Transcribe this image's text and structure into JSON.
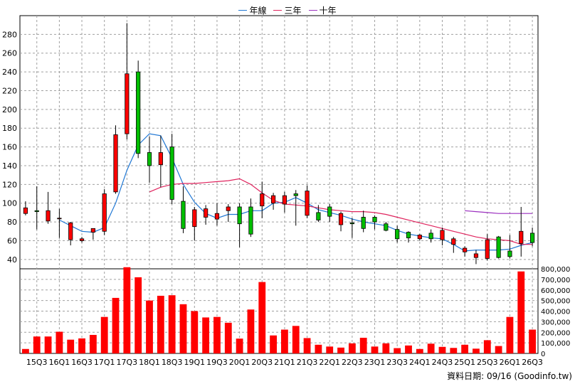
{
  "chart_data": {
    "type": "candlestick-with-volume",
    "legend": [
      {
        "label": "年線",
        "color": "#1f77d4"
      },
      {
        "label": "三年",
        "color": "#e0245e"
      },
      {
        "label": "十年",
        "color": "#9b2fbf"
      }
    ],
    "quarters": [
      "15Q2",
      "15Q3",
      "15Q4",
      "16Q1",
      "16Q2",
      "16Q3",
      "16Q4",
      "17Q1",
      "17Q2",
      "17Q3",
      "17Q4",
      "18Q1",
      "18Q2",
      "18Q3",
      "18Q4",
      "19Q1",
      "19Q2",
      "19Q3",
      "19Q4",
      "20Q1",
      "20Q2",
      "20Q3",
      "20Q4",
      "21Q1",
      "21Q2",
      "21Q3",
      "21Q4",
      "22Q1",
      "22Q2",
      "22Q3",
      "22Q4",
      "23Q1",
      "23Q2",
      "23Q3",
      "23Q4",
      "24Q1",
      "24Q2",
      "24Q3",
      "24Q4",
      "25Q1",
      "25Q2",
      "25Q3",
      "25Q4",
      "26Q1",
      "26Q2",
      "26Q3"
    ],
    "x_tick_labels": [
      "15Q3",
      "16Q1",
      "16Q3",
      "17Q1",
      "17Q3",
      "18Q1",
      "18Q3",
      "19Q1",
      "19Q3",
      "20Q1",
      "20Q3",
      "21Q1",
      "21Q3",
      "22Q1",
      "22Q3",
      "23Q1",
      "23Q3",
      "24Q1",
      "24Q3",
      "25Q1",
      "25Q3",
      "26Q1",
      "26Q3"
    ],
    "ohlc": [
      [
        89,
        102,
        87,
        95
      ],
      [
        92,
        118,
        72,
        91
      ],
      [
        81,
        112,
        78,
        92
      ],
      [
        84,
        94,
        63,
        84
      ],
      [
        61,
        80,
        55,
        79
      ],
      [
        60,
        64,
        58,
        62
      ],
      [
        69,
        73,
        61,
        73
      ],
      [
        70,
        115,
        66,
        110
      ],
      [
        112,
        183,
        110,
        173
      ],
      [
        174,
        292,
        168,
        238
      ],
      [
        240,
        252,
        148,
        153
      ],
      [
        154,
        171,
        122,
        140
      ],
      [
        141,
        172,
        117,
        154
      ],
      [
        160,
        174,
        99,
        104
      ],
      [
        102,
        118,
        68,
        73
      ],
      [
        75,
        96,
        60,
        93
      ],
      [
        85,
        98,
        77,
        94
      ],
      [
        83,
        100,
        76,
        89
      ],
      [
        92,
        99,
        80,
        96
      ],
      [
        96,
        100,
        53,
        78
      ],
      [
        96,
        105,
        64,
        67
      ],
      [
        97,
        123,
        84,
        110
      ],
      [
        100,
        111,
        93,
        108
      ],
      [
        99,
        112,
        90,
        108
      ],
      [
        110,
        114,
        76,
        108
      ],
      [
        87,
        119,
        84,
        113
      ],
      [
        90,
        98,
        80,
        82
      ],
      [
        96,
        99,
        80,
        86
      ],
      [
        77,
        91,
        70,
        89
      ],
      [
        79,
        84,
        63,
        78
      ],
      [
        85,
        92,
        69,
        73
      ],
      [
        85,
        87,
        72,
        80
      ],
      [
        78,
        80,
        70,
        71
      ],
      [
        72,
        76,
        58,
        62
      ],
      [
        69,
        70,
        58,
        63
      ],
      [
        62,
        67,
        60,
        66
      ],
      [
        68,
        72,
        58,
        62
      ],
      [
        61,
        74,
        55,
        71
      ],
      [
        56,
        64,
        47,
        62
      ],
      [
        48,
        54,
        43,
        52
      ],
      [
        42,
        50,
        35,
        46
      ],
      [
        41,
        67,
        39,
        61
      ],
      [
        64,
        65,
        41,
        42
      ],
      [
        49,
        66,
        41,
        43
      ],
      [
        57,
        96,
        43,
        70
      ],
      [
        68,
        74,
        54,
        58
      ]
    ],
    "ma_year": [
      null,
      null,
      null,
      82,
      76,
      70,
      69,
      74,
      100,
      135,
      162,
      174,
      172,
      148,
      120,
      101,
      89,
      84,
      88,
      88,
      92,
      92,
      100,
      101,
      106,
      100,
      93,
      90,
      87,
      83,
      80,
      78,
      76,
      71,
      67,
      65,
      63,
      62,
      56,
      49,
      50,
      50,
      50,
      51,
      55,
      58
    ],
    "ma_three": [
      null,
      null,
      null,
      null,
      null,
      null,
      null,
      null,
      null,
      null,
      null,
      112,
      117,
      120,
      121,
      121,
      122,
      123,
      124,
      126,
      120,
      111,
      103,
      99,
      98,
      97,
      95,
      93,
      92,
      91,
      91,
      90,
      88,
      85,
      82,
      79,
      76,
      73,
      70,
      67,
      64,
      62,
      61,
      60,
      56,
      56
    ],
    "ma_ten": [
      null,
      null,
      null,
      null,
      null,
      null,
      null,
      null,
      null,
      null,
      null,
      null,
      null,
      null,
      null,
      null,
      null,
      null,
      null,
      null,
      null,
      null,
      null,
      null,
      null,
      null,
      null,
      null,
      null,
      null,
      null,
      null,
      null,
      null,
      null,
      null,
      null,
      null,
      null,
      92,
      91,
      90,
      89,
      89,
      89,
      89
    ],
    "volume": [
      42000,
      160000,
      160000,
      205000,
      130000,
      142000,
      175000,
      345000,
      525000,
      815000,
      720000,
      500000,
      545000,
      550000,
      465000,
      400000,
      340000,
      345000,
      290000,
      140000,
      415000,
      675000,
      170000,
      225000,
      260000,
      145000,
      82000,
      65000,
      55000,
      95000,
      148000,
      65000,
      95000,
      50000,
      75000,
      42000,
      92000,
      62000,
      52000,
      82000,
      45000,
      125000,
      70000,
      345000,
      775000,
      225000
    ],
    "price_axis": {
      "min": 30,
      "max": 300,
      "ticks": [
        40,
        60,
        80,
        100,
        120,
        140,
        160,
        180,
        200,
        220,
        240,
        260,
        280
      ]
    },
    "volume_axis": {
      "min": 0,
      "max": 800000,
      "ticks": [
        "0",
        "100,000",
        "200,000",
        "300,000",
        "400,000",
        "500,000",
        "600,000",
        "700,000",
        "800,000"
      ],
      "values": [
        0,
        100000,
        200000,
        300000,
        400000,
        500000,
        600000,
        700000,
        800000
      ]
    },
    "footer": "資料日期: 09/16 (Goodinfo.tw)",
    "colors": {
      "up": "#ff0000",
      "down": "#00bf00",
      "volume": "#ff0000",
      "grid": "#a0a0a0"
    }
  }
}
